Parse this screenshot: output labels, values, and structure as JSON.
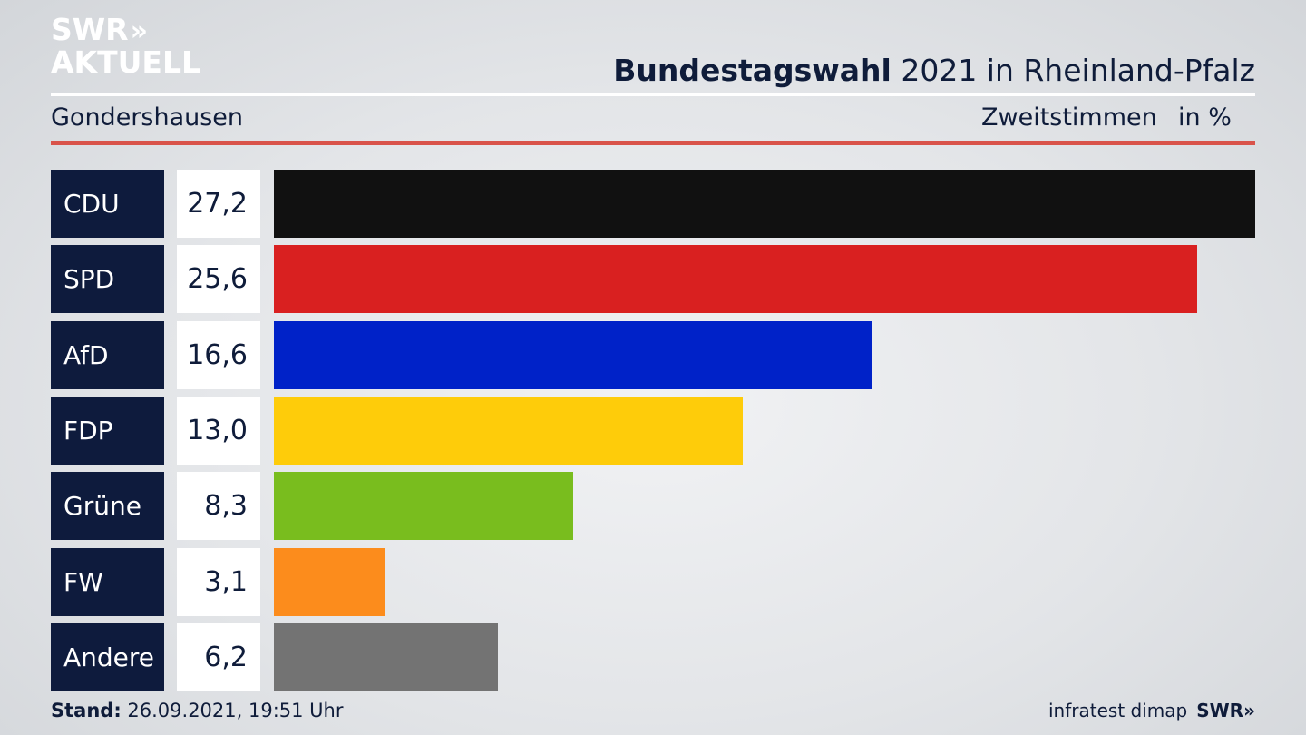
{
  "brand": {
    "logo_line1": "SWR",
    "logo_chevrons": "»",
    "logo_line2": "AKTUELL"
  },
  "header": {
    "title_bold": "Bundestagswahl",
    "title_rest": " 2021 in Rheinland-Pfalz",
    "region": "Gondershausen",
    "metric": "Zweitstimmen",
    "unit": "in %"
  },
  "colors": {
    "accent_rule": "#d9534a",
    "label_bg": "#0e1b3d"
  },
  "chart_data": {
    "type": "bar",
    "orientation": "horizontal",
    "categories": [
      "CDU",
      "SPD",
      "AfD",
      "FDP",
      "Grüne",
      "FW",
      "Andere"
    ],
    "values": [
      27.2,
      25.6,
      16.6,
      13.0,
      8.3,
      3.1,
      6.2
    ],
    "value_labels": [
      "27,2",
      "25,6",
      "16,6",
      "13,0",
      "8,3",
      "3,1",
      "6,2"
    ],
    "colors": [
      "#111111",
      "#d92020",
      "#0022c8",
      "#fecc0a",
      "#79bd1e",
      "#fc8c1c",
      "#737373"
    ],
    "xlim": [
      0,
      27.2
    ],
    "grid": false
  },
  "footer": {
    "stand_label": "Stand:",
    "stand_value": " 26.09.2021, 19:51 Uhr",
    "source": "infratest dimap",
    "brand": "SWR»"
  }
}
